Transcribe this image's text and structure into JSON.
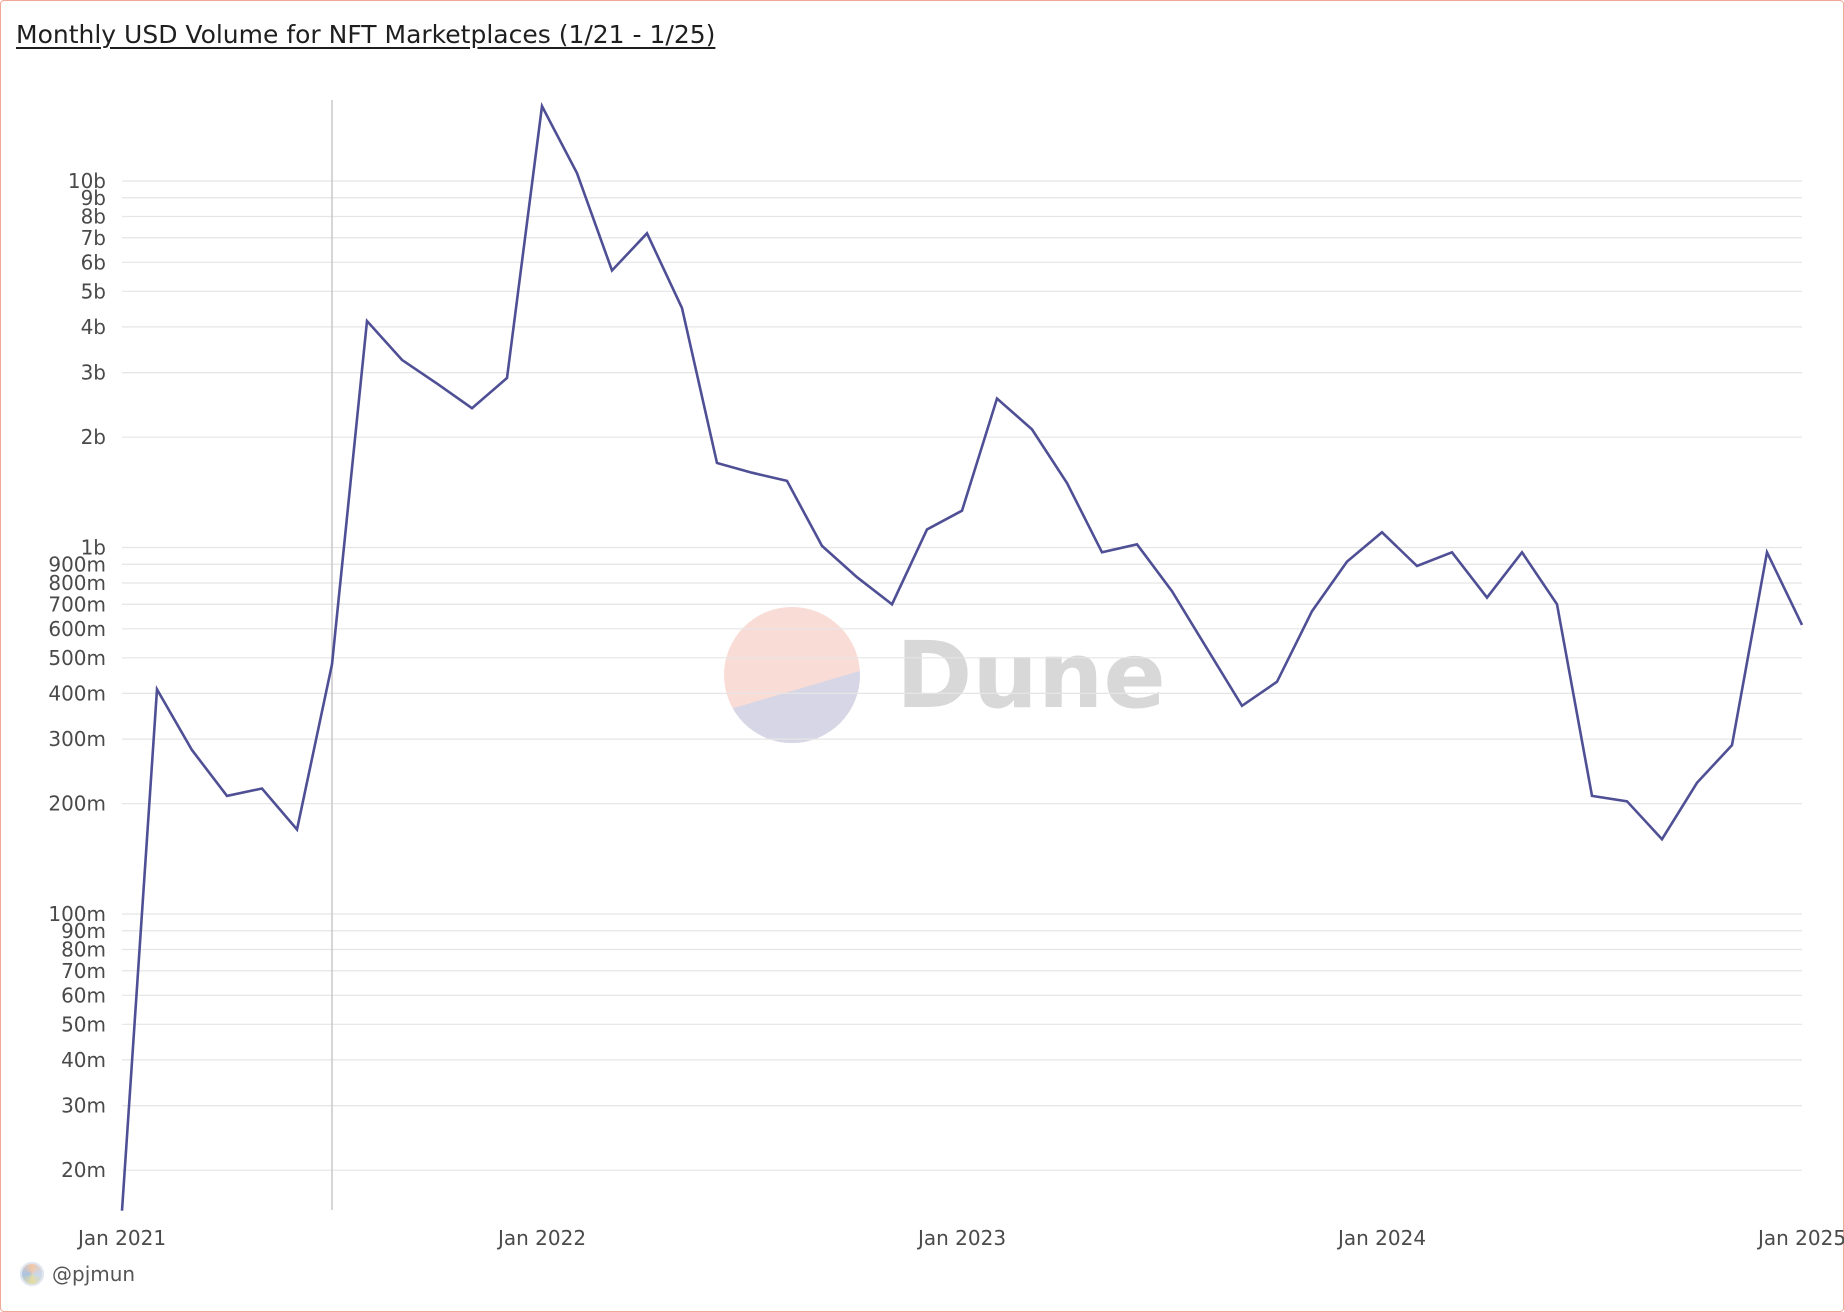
{
  "title": "Monthly USD Volume for NFT Marketplaces (1/21 - 1/25)",
  "author": "@pjmun",
  "watermark": "Dune",
  "colors": {
    "line": "#4f4f95",
    "grid": "#e5e5e5",
    "watermark_text": "#d8d8d8",
    "watermark_top": "#fadcd6",
    "watermark_bottom": "#d6d6e6",
    "frame": "#f0a898"
  },
  "chart_data": {
    "type": "line",
    "title": "Monthly USD Volume for NFT Marketplaces (1/21 - 1/25)",
    "xlabel": "",
    "ylabel": "",
    "yscale": "log",
    "grid": true,
    "xlim": [
      "2021-01",
      "2025-01"
    ],
    "ylim": [
      15000000,
      20000000000
    ],
    "x_ticks": [
      "Jan 2021",
      "Jan 2022",
      "Jan 2023",
      "Jan 2024",
      "Jan 2025"
    ],
    "y_ticks": [
      {
        "value": 20000000,
        "label": "20m"
      },
      {
        "value": 30000000,
        "label": "30m"
      },
      {
        "value": 40000000,
        "label": "40m"
      },
      {
        "value": 50000000,
        "label": "50m"
      },
      {
        "value": 60000000,
        "label": "60m"
      },
      {
        "value": 70000000,
        "label": "70m"
      },
      {
        "value": 80000000,
        "label": "80m"
      },
      {
        "value": 90000000,
        "label": "90m"
      },
      {
        "value": 100000000,
        "label": "100m"
      },
      {
        "value": 200000000,
        "label": "200m"
      },
      {
        "value": 300000000,
        "label": "300m"
      },
      {
        "value": 400000000,
        "label": "400m"
      },
      {
        "value": 500000000,
        "label": "500m"
      },
      {
        "value": 600000000,
        "label": "600m"
      },
      {
        "value": 700000000,
        "label": "700m"
      },
      {
        "value": 800000000,
        "label": "800m"
      },
      {
        "value": 900000000,
        "label": "900m"
      },
      {
        "value": 1000000000,
        "label": "1b"
      },
      {
        "value": 2000000000,
        "label": "2b"
      },
      {
        "value": 3000000000,
        "label": "3b"
      },
      {
        "value": 4000000000,
        "label": "4b"
      },
      {
        "value": 5000000000,
        "label": "5b"
      },
      {
        "value": 6000000000,
        "label": "6b"
      },
      {
        "value": 7000000000,
        "label": "7b"
      },
      {
        "value": 8000000000,
        "label": "8b"
      },
      {
        "value": 9000000000,
        "label": "9b"
      },
      {
        "value": 10000000000,
        "label": "10b"
      }
    ],
    "marker_line_x": "2021-07",
    "x": [
      "2021-01",
      "2021-02",
      "2021-03",
      "2021-04",
      "2021-05",
      "2021-06",
      "2021-07",
      "2021-08",
      "2021-09",
      "2021-10",
      "2021-11",
      "2021-12",
      "2022-01",
      "2022-02",
      "2022-03",
      "2022-04",
      "2022-05",
      "2022-06",
      "2022-07",
      "2022-08",
      "2022-09",
      "2022-10",
      "2022-11",
      "2022-12",
      "2023-01",
      "2023-02",
      "2023-03",
      "2023-04",
      "2023-05",
      "2023-06",
      "2023-07",
      "2023-08",
      "2023-09",
      "2023-10",
      "2023-11",
      "2023-12",
      "2024-01",
      "2024-02",
      "2024-03",
      "2024-04",
      "2024-05",
      "2024-06",
      "2024-07",
      "2024-08",
      "2024-09",
      "2024-10",
      "2024-11",
      "2024-12",
      "2025-01"
    ],
    "series": [
      {
        "values": [
          15500000,
          410000000,
          280000000,
          210000000,
          220000000,
          170000000,
          480000000,
          4150000000,
          3250000000,
          2800000000,
          2400000000,
          2900000000,
          16000000000,
          10500000000,
          5700000000,
          7200000000,
          4500000000,
          1700000000,
          1600000000,
          1520000000,
          1010000000,
          830000000,
          700000000,
          1120000000,
          1260000000,
          2550000000,
          2100000000,
          1500000000,
          970000000,
          1020000000,
          760000000,
          530000000,
          370000000,
          430000000,
          670000000,
          915000000,
          1100000000,
          890000000,
          970000000,
          730000000,
          970000000,
          700000000,
          210000000,
          203000000,
          160000000,
          228000000,
          289000000,
          970000000,
          615000000
        ]
      }
    ]
  }
}
